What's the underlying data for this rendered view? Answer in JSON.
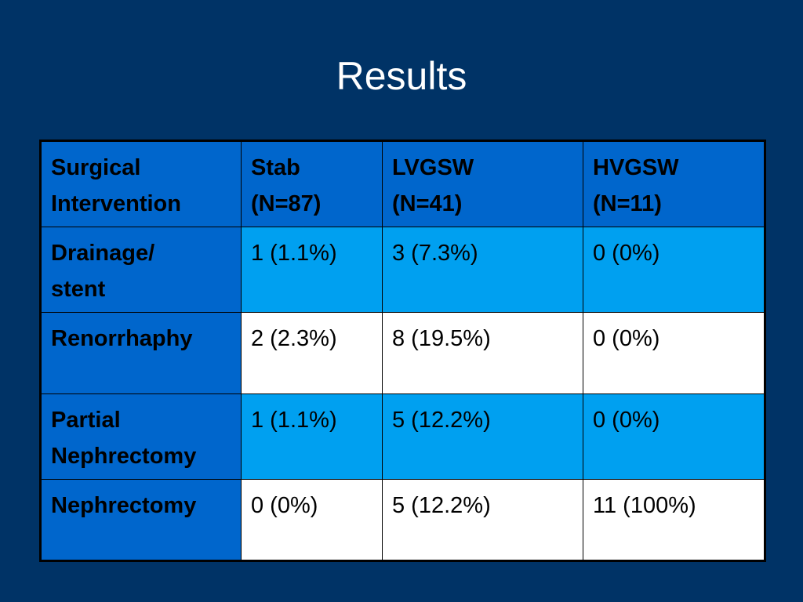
{
  "slide": {
    "title": "Results"
  },
  "table": {
    "headers": [
      [
        "Surgical",
        "Intervention"
      ],
      [
        "Stab",
        "(N=87)"
      ],
      [
        "LVGSW",
        "(N=41)"
      ],
      [
        "HVGSW",
        "(N=11)"
      ]
    ],
    "rows": [
      {
        "label": [
          "Drainage/",
          "stent"
        ],
        "cells": [
          "1 (1.1%)",
          "3 (7.3%)",
          "0 (0%)"
        ]
      },
      {
        "label": [
          "Renorrhaphy"
        ],
        "cells": [
          "2 (2.3%)",
          "8 (19.5%)",
          "0 (0%)"
        ]
      },
      {
        "label": [
          "Partial",
          "Nephrectomy"
        ],
        "cells": [
          "1 (1.1%)",
          "5 (12.2%)",
          "0 (0%)"
        ]
      },
      {
        "label": [
          "Nephrectomy"
        ],
        "cells": [
          "0 (0%)",
          "5 (12.2%)",
          "11 (100%)"
        ]
      }
    ]
  },
  "colors": {
    "background": "#003366",
    "header_fill": "#0066cc",
    "band_light": "#00a0f0",
    "band_white": "#ffffff",
    "title_text": "#ffffff"
  }
}
